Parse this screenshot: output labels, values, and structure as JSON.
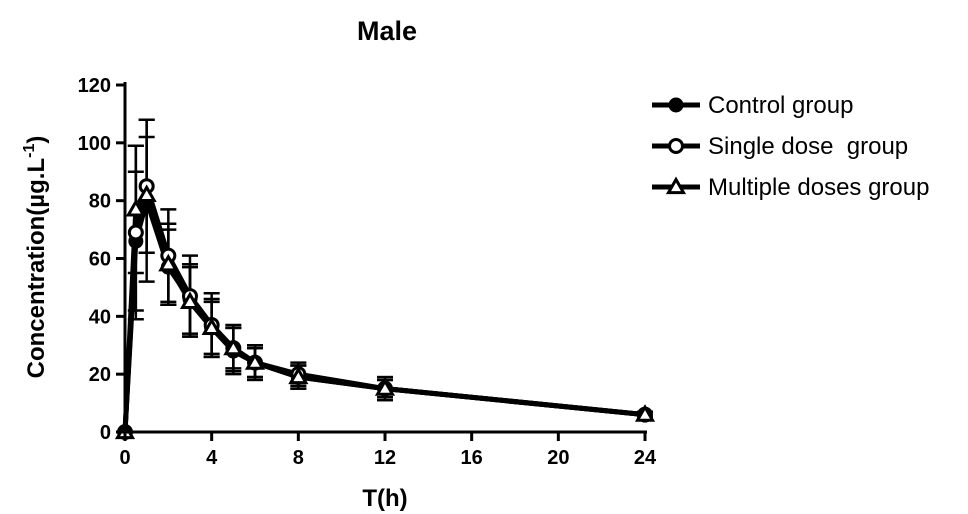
{
  "chart_data": {
    "type": "line",
    "title": "Male",
    "xlabel": "T(h)",
    "ylabel_main": "Concentration(µg.L",
    "ylabel_sup": "-1",
    "ylabel_close": ")",
    "xlim": [
      0,
      24
    ],
    "ylim": [
      0,
      120
    ],
    "xticks": [
      0,
      4,
      8,
      12,
      16,
      20,
      24
    ],
    "yticks": [
      0,
      20,
      40,
      60,
      80,
      100,
      120
    ],
    "grid": false,
    "legend_position": "right",
    "x": [
      0,
      0.5,
      1,
      2,
      3,
      4,
      5,
      6,
      8,
      12,
      24
    ],
    "series": [
      {
        "name": "Control group",
        "marker": "filled-circle",
        "values": [
          0,
          66,
          80,
          57,
          46,
          36,
          28,
          24,
          19,
          15,
          6
        ],
        "errors": [
          0,
          24,
          28,
          13,
          12,
          10,
          8,
          5,
          4,
          3,
          1
        ]
      },
      {
        "name": "Single dose  group",
        "marker": "open-circle",
        "values": [
          0,
          69,
          85,
          61,
          47,
          37,
          29,
          24,
          20,
          15,
          6
        ],
        "errors": [
          0,
          30,
          23,
          16,
          14,
          11,
          8,
          6,
          4,
          4,
          1
        ]
      },
      {
        "name": "Multiple doses group",
        "marker": "open-triangle",
        "values": [
          0,
          77,
          82,
          58,
          45,
          36,
          29,
          24,
          19,
          15,
          6
        ],
        "errors": [
          0,
          22,
          20,
          14,
          12,
          9,
          7,
          5,
          4,
          3,
          1
        ]
      }
    ]
  }
}
